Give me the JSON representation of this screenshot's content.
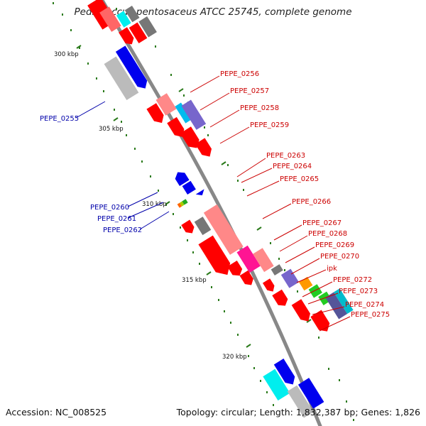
{
  "title": "Pediococcus pentosaceus ATCC 25745, complete genome",
  "accession": "Accession: NC_008525",
  "summary": "Topology: circular; Length: 1,832,387 bp; Genes: 1,826",
  "kbp_ticks": [
    {
      "label": "300 kbp"
    },
    {
      "label": "305 kbp"
    },
    {
      "label": "310 kbp"
    },
    {
      "label": "315 kbp"
    },
    {
      "label": "320 kbp"
    }
  ],
  "reverse_genes": [
    {
      "label": "PEPE_0255"
    },
    {
      "label": "PEPE_0260"
    },
    {
      "label": "PEPE_0261"
    },
    {
      "label": "PEPE_0262"
    }
  ],
  "forward_genes": [
    {
      "label": "PEPE_0256"
    },
    {
      "label": "PEPE_0257"
    },
    {
      "label": "PEPE_0258"
    },
    {
      "label": "PEPE_0259"
    },
    {
      "label": "PEPE_0263"
    },
    {
      "label": "PEPE_0264"
    },
    {
      "label": "PEPE_0265"
    },
    {
      "label": "PEPE_0266"
    },
    {
      "label": "PEPE_0267"
    },
    {
      "label": "PEPE_0268"
    },
    {
      "label": "PEPE_0269"
    },
    {
      "label": "PEPE_0270"
    },
    {
      "label": "ipk"
    },
    {
      "label": "PEPE_0272"
    },
    {
      "label": "PEPE_0273"
    },
    {
      "label": "PEPE_0274"
    },
    {
      "label": "PEPE_0275"
    }
  ],
  "colors": {
    "forward_label": "#cc0000",
    "reverse_label": "#0000aa",
    "cds_forward": "#ff0000",
    "cds_reverse": "#0000ee",
    "backbone": "#888888",
    "tick": "#2a7a1a"
  }
}
